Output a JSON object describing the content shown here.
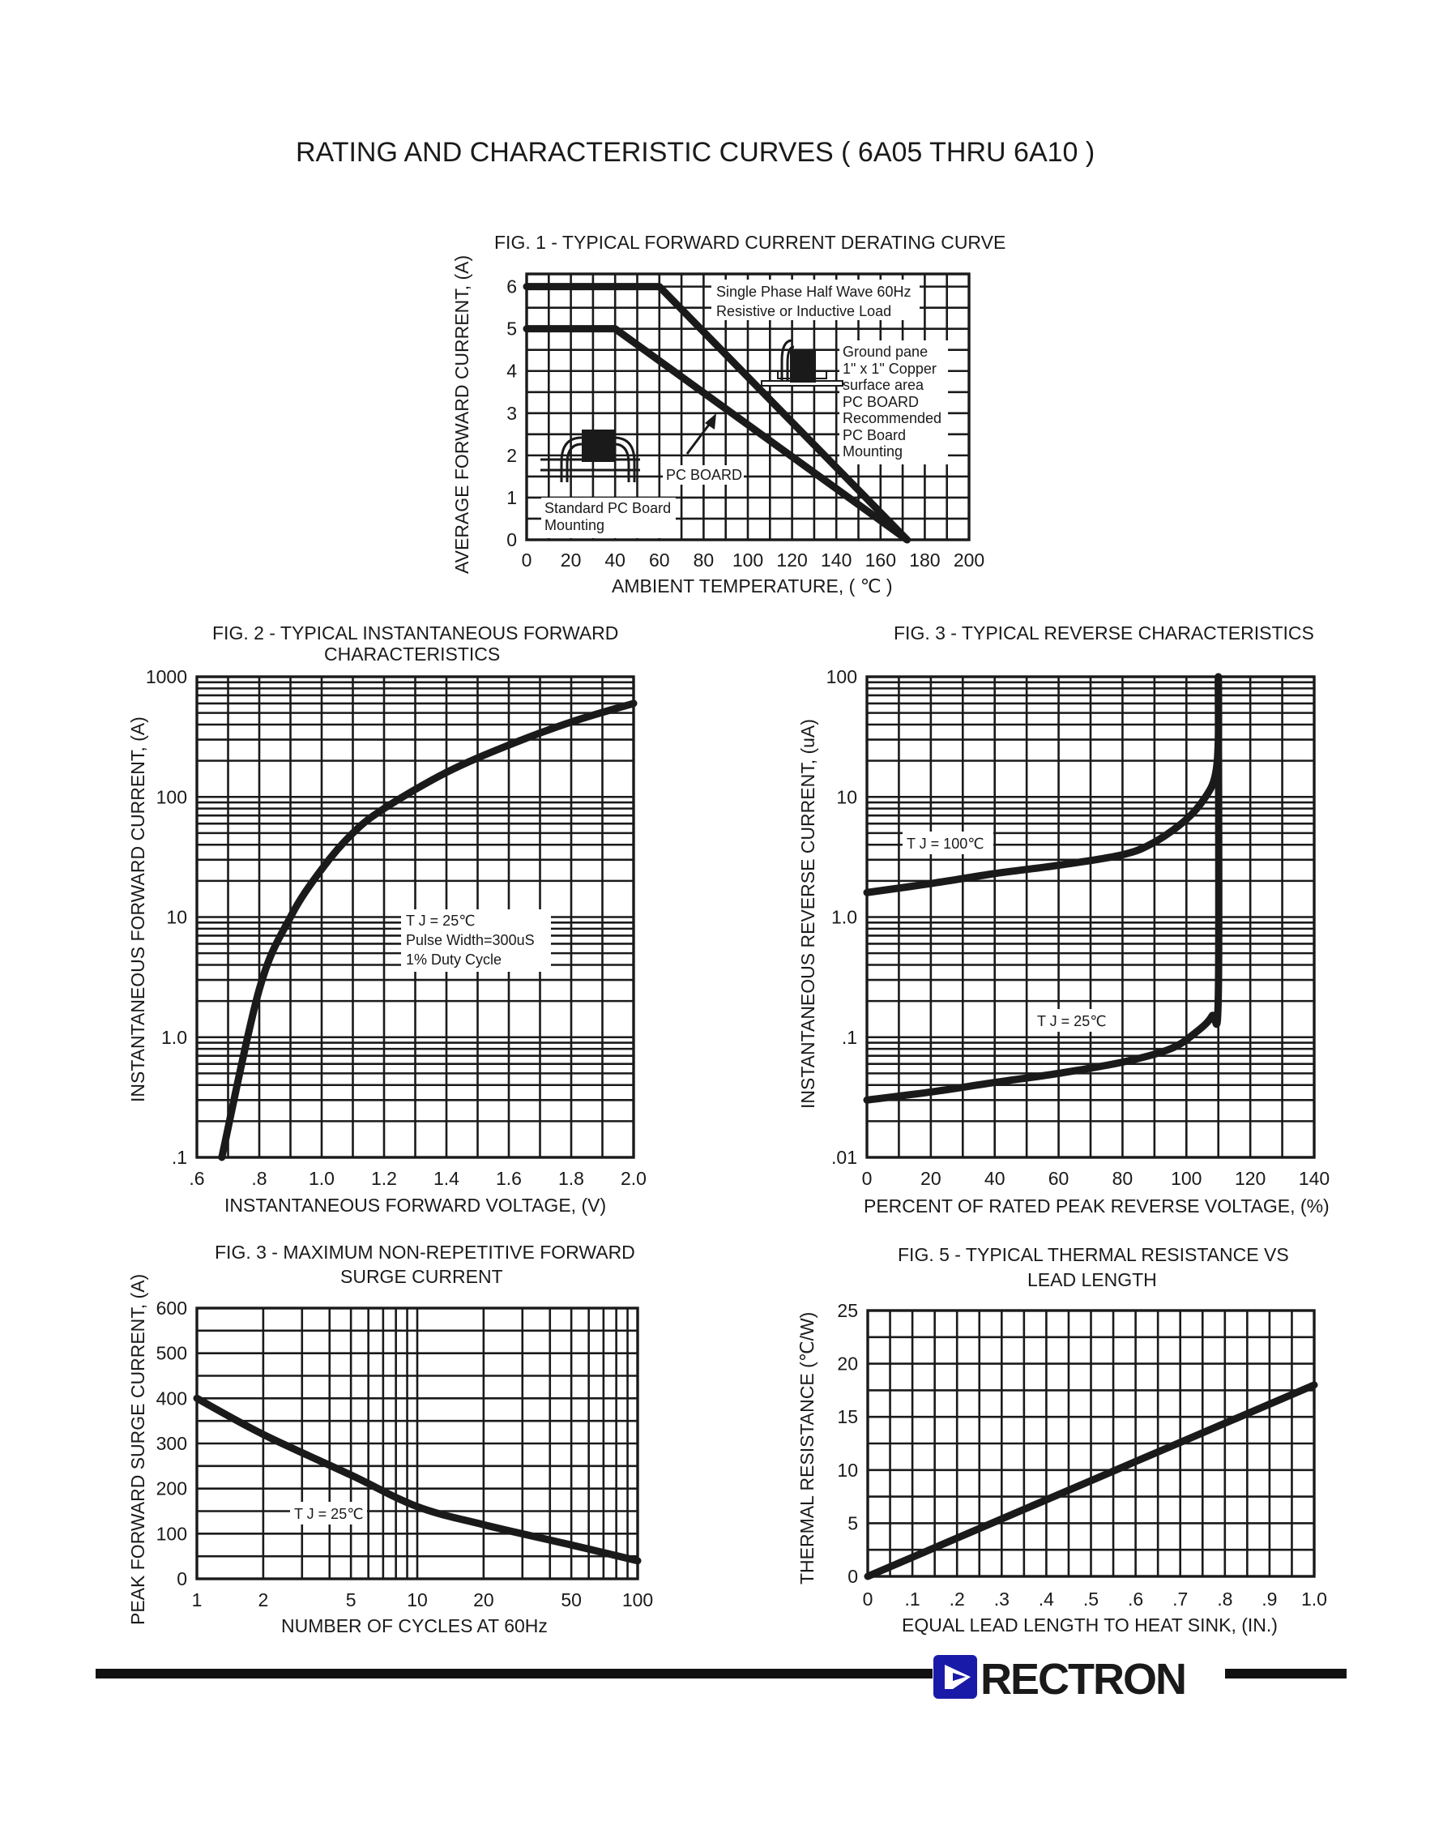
{
  "page": {
    "title": "RATING AND CHARACTERISTIC CURVES ( 6A05 THRU 6A10 )",
    "brand": "RECTRON",
    "brand_color": "#1a1aa8"
  },
  "chart_data": [
    {
      "id": "fig1",
      "type": "line",
      "title": "FIG. 1 - TYPICAL FORWARD CURRENT DERATING CURVE",
      "xlabel": "AMBIENT TEMPERATURE, ( ℃ )",
      "ylabel": "AVERAGE FORWARD CURRENT, (A)",
      "xlim": [
        0,
        200
      ],
      "ylim": [
        0,
        6.3
      ],
      "x_ticks": [
        "0",
        "20",
        "40",
        "60",
        "80",
        "100",
        "120",
        "140",
        "160",
        "180",
        "200"
      ],
      "y_ticks": [
        "0",
        "1",
        "2",
        "3",
        "4",
        "5",
        "6"
      ],
      "series": [
        {
          "x": [
            0,
            60,
            172
          ],
          "y": [
            6,
            6,
            0
          ]
        },
        {
          "x": [
            0,
            40,
            172
          ],
          "y": [
            5,
            5,
            0
          ]
        }
      ],
      "annotations": {
        "condition_line1": "Single Phase Half Wave 60Hz",
        "condition_line2": "Resistive or Inductive  Load",
        "pcb_lines": [
          "Ground pane",
          "1\" x 1\" Copper",
          "surface area",
          "PC BOARD",
          "Recommended",
          "PC Board",
          "Mounting"
        ],
        "pc_board": "PC BOARD",
        "standard_line1": "Standard PC Board",
        "standard_line2": "Mounting"
      },
      "grid": true
    },
    {
      "id": "fig2",
      "type": "line",
      "title_line1": "FIG. 2 - TYPICAL INSTANTANEOUS FORWARD",
      "title_line2": "CHARACTERISTICS",
      "xlabel": "INSTANTANEOUS FORWARD VOLTAGE, (V)",
      "ylabel": "INSTANTANEOUS FORWARD CURRENT, (A)",
      "xlim": [
        0.6,
        2.0
      ],
      "ylim": [
        0.1,
        1000
      ],
      "yscale": "log",
      "x_ticks": [
        ".6",
        ".8",
        "1.0",
        "1.2",
        "1.4",
        "1.6",
        "1.8",
        "2.0"
      ],
      "y_ticks": [
        ".1",
        "1.0",
        "10",
        "100",
        "1000"
      ],
      "series": [
        {
          "x": [
            0.68,
            0.8,
            0.9,
            1.0,
            1.1,
            1.2,
            1.4,
            1.6,
            1.8,
            2.0
          ],
          "y": [
            0.1,
            2.5,
            10,
            25,
            50,
            80,
            160,
            270,
            420,
            600
          ]
        }
      ],
      "annotation_lines": [
        "T J = 25℃",
        "Pulse Width=300uS",
        "1% Duty Cycle"
      ],
      "grid": true
    },
    {
      "id": "fig3",
      "type": "line",
      "title": "FIG. 3 - TYPICAL REVERSE CHARACTERISTICS",
      "xlabel": "PERCENT OF RATED PEAK REVERSE VOLTAGE, (%)",
      "ylabel": "INSTANTANEOUS REVERSE CURRENT, (uA)",
      "xlim": [
        0,
        140
      ],
      "ylim": [
        0.01,
        100
      ],
      "yscale": "log",
      "x_ticks": [
        "0",
        "20",
        "40",
        "60",
        "80",
        "100",
        "120",
        "140"
      ],
      "y_ticks": [
        ".01",
        ".1",
        "1.0",
        "10",
        "100"
      ],
      "series": [
        {
          "name": "T J = 100℃",
          "x": [
            0,
            20,
            40,
            60,
            80,
            90,
            100,
            106,
            109,
            110,
            110
          ],
          "y": [
            1.6,
            1.9,
            2.3,
            2.7,
            3.3,
            4.2,
            6.5,
            10,
            15,
            30,
            100
          ]
        },
        {
          "name": "T J = 25℃",
          "x": [
            0,
            20,
            40,
            60,
            80,
            95,
            103,
            108,
            110,
            110
          ],
          "y": [
            0.03,
            0.035,
            0.042,
            0.05,
            0.062,
            0.08,
            0.11,
            0.15,
            0.23,
            100
          ]
        }
      ],
      "grid": true
    },
    {
      "id": "fig4",
      "type": "line",
      "title_line1": "FIG. 3 - MAXIMUM NON-REPETITIVE FORWARD",
      "title_line2": "SURGE CURRENT",
      "xlabel": "NUMBER OF CYCLES AT 60Hz",
      "ylabel": "PEAK FORWARD SURGE CURRENT, (A)",
      "xlim": [
        1,
        100
      ],
      "xscale": "log",
      "ylim": [
        0,
        600
      ],
      "x_ticks": [
        "1",
        "2",
        "5",
        "10",
        "20",
        "50",
        "100"
      ],
      "y_ticks": [
        "0",
        "100",
        "200",
        "300",
        "400",
        "500",
        "600"
      ],
      "series": [
        {
          "x": [
            1,
            2,
            5,
            10,
            20,
            50,
            100
          ],
          "y": [
            400,
            320,
            230,
            160,
            120,
            75,
            40
          ]
        }
      ],
      "annotation": "T J = 25℃",
      "grid": true
    },
    {
      "id": "fig5",
      "type": "line",
      "title_line1": "FIG. 5 - TYPICAL THERMAL RESISTANCE VS",
      "title_line2": "LEAD LENGTH",
      "xlabel": "EQUAL LEAD LENGTH TO HEAT SINK, (IN.)",
      "ylabel": "THERMAL RESISTANCE (℃/W)",
      "xlim": [
        0,
        1.0
      ],
      "ylim": [
        0,
        25
      ],
      "x_ticks": [
        "0",
        ".1",
        ".2",
        ".3",
        ".4",
        ".5",
        ".6",
        ".7",
        ".8",
        ".9",
        "1.0"
      ],
      "y_ticks": [
        "0",
        "5",
        "10",
        "15",
        "20",
        "25"
      ],
      "series": [
        {
          "x": [
            0,
            1.0
          ],
          "y": [
            0,
            18
          ]
        }
      ],
      "grid": true
    }
  ]
}
